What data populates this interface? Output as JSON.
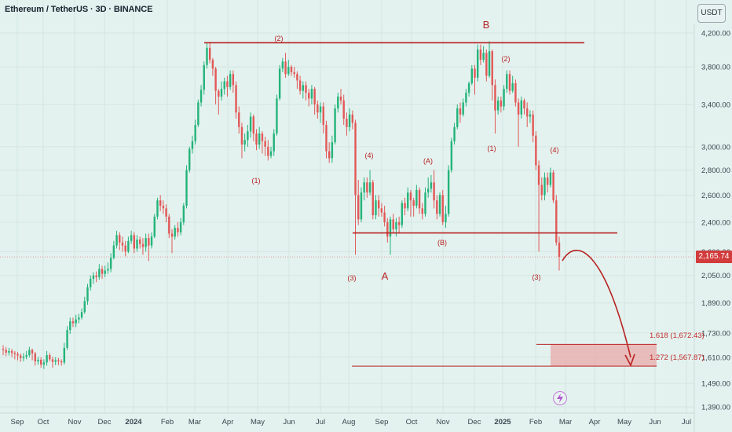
{
  "header": {
    "title": "Ethereum / TetherUS · 3D · BINANCE",
    "unit_label": "USDT"
  },
  "price_badge": "2,165.74",
  "colors": {
    "background": "#e3f2ef",
    "up": "#24b37a",
    "down": "#e15857",
    "annotation": "#b82222",
    "fib_zone": "#e9a5a5"
  },
  "chart_data": {
    "type": "candlestick",
    "title": "Ethereum / TetherUS · 3D · BINANCE",
    "y_scale": "log",
    "ylim": [
      1360,
      4400
    ],
    "y_ticks": [
      "4,200.00",
      "3,800.00",
      "3,400.00",
      "3,000.00",
      "2,800.00",
      "2,600.00",
      "2,400.00",
      "2,200.00",
      "2,050.00",
      "1,890.00",
      "1,730.00",
      "1,610.00",
      "1,490.00",
      "1,390.00"
    ],
    "x_ticks": [
      "Sep",
      "Oct",
      "Nov",
      "Dec",
      "2024",
      "Feb",
      "Mar",
      "Apr",
      "May",
      "Jun",
      "Jul",
      "Aug",
      "Sep",
      "Oct",
      "Nov",
      "Dec",
      "2025",
      "Feb",
      "Mar",
      "Apr",
      "May",
      "Jun",
      "Jul"
    ],
    "candles": [
      [
        1650,
        1645,
        1668,
        1620
      ],
      [
        1645,
        1632,
        1660,
        1615
      ],
      [
        1632,
        1640,
        1655,
        1618
      ],
      [
        1640,
        1630,
        1650,
        1610
      ],
      [
        1630,
        1625,
        1640,
        1600
      ],
      [
        1625,
        1618,
        1635,
        1595
      ],
      [
        1618,
        1606,
        1628,
        1588
      ],
      [
        1606,
        1612,
        1630,
        1590
      ],
      [
        1612,
        1620,
        1640,
        1600
      ],
      [
        1620,
        1645,
        1660,
        1610
      ],
      [
        1645,
        1628,
        1652,
        1595
      ],
      [
        1628,
        1590,
        1635,
        1570
      ],
      [
        1590,
        1598,
        1612,
        1575
      ],
      [
        1598,
        1575,
        1610,
        1560
      ],
      [
        1575,
        1585,
        1600,
        1555
      ],
      [
        1585,
        1620,
        1640,
        1570
      ],
      [
        1620,
        1600,
        1630,
        1590
      ],
      [
        1600,
        1588,
        1612,
        1560
      ],
      [
        1588,
        1596,
        1610,
        1572
      ],
      [
        1596,
        1590,
        1606,
        1572
      ],
      [
        1590,
        1585,
        1600,
        1570
      ],
      [
        1585,
        1655,
        1680,
        1575
      ],
      [
        1655,
        1745,
        1765,
        1645
      ],
      [
        1745,
        1790,
        1810,
        1725
      ],
      [
        1790,
        1780,
        1810,
        1760
      ],
      [
        1780,
        1800,
        1825,
        1760
      ],
      [
        1800,
        1810,
        1830,
        1780
      ],
      [
        1810,
        1840,
        1860,
        1800
      ],
      [
        1840,
        1900,
        1925,
        1830
      ],
      [
        1900,
        1980,
        2000,
        1880
      ],
      [
        1980,
        2030,
        2050,
        1960
      ],
      [
        2030,
        2050,
        2070,
        2000
      ],
      [
        2050,
        2040,
        2075,
        2010
      ],
      [
        2040,
        2090,
        2120,
        2025
      ],
      [
        2090,
        2060,
        2110,
        2030
      ],
      [
        2060,
        2080,
        2110,
        2040
      ],
      [
        2080,
        2090,
        2130,
        2060
      ],
      [
        2090,
        2160,
        2190,
        2070
      ],
      [
        2160,
        2240,
        2270,
        2150
      ],
      [
        2240,
        2310,
        2340,
        2220
      ],
      [
        2310,
        2260,
        2330,
        2210
      ],
      [
        2260,
        2240,
        2300,
        2200
      ],
      [
        2240,
        2200,
        2270,
        2170
      ],
      [
        2200,
        2270,
        2300,
        2190
      ],
      [
        2270,
        2310,
        2340,
        2250
      ],
      [
        2310,
        2220,
        2330,
        2190
      ],
      [
        2220,
        2280,
        2310,
        2200
      ],
      [
        2280,
        2250,
        2300,
        2220
      ],
      [
        2250,
        2230,
        2290,
        2180
      ],
      [
        2230,
        2290,
        2320,
        2200
      ],
      [
        2290,
        2240,
        2320,
        2140
      ],
      [
        2240,
        2300,
        2330,
        2220
      ],
      [
        2300,
        2440,
        2460,
        2290
      ],
      [
        2440,
        2560,
        2580,
        2420
      ],
      [
        2560,
        2520,
        2600,
        2480
      ],
      [
        2520,
        2500,
        2560,
        2460
      ],
      [
        2500,
        2440,
        2530,
        2400
      ],
      [
        2440,
        2320,
        2460,
        2290
      ],
      [
        2320,
        2300,
        2350,
        2190
      ],
      [
        2300,
        2360,
        2380,
        2280
      ],
      [
        2360,
        2330,
        2400,
        2300
      ],
      [
        2330,
        2400,
        2430,
        2310
      ],
      [
        2400,
        2520,
        2540,
        2380
      ],
      [
        2520,
        2800,
        2840,
        2500
      ],
      [
        2800,
        2980,
        3000,
        2780
      ],
      [
        2980,
        3050,
        3100,
        2940
      ],
      [
        3050,
        3200,
        3250,
        3020
      ],
      [
        3200,
        3420,
        3450,
        3180
      ],
      [
        3420,
        3550,
        3600,
        3380
      ],
      [
        3550,
        3820,
        3860,
        3500
      ],
      [
        3820,
        4020,
        4080,
        3780
      ],
      [
        4020,
        3880,
        4090,
        3840
      ],
      [
        3880,
        3780,
        3900,
        3700
      ],
      [
        3780,
        3540,
        3800,
        3400
      ],
      [
        3540,
        3480,
        3560,
        3300
      ],
      [
        3480,
        3560,
        3640,
        3440
      ],
      [
        3560,
        3640,
        3680,
        3500
      ],
      [
        3640,
        3580,
        3700,
        3480
      ],
      [
        3580,
        3720,
        3760,
        3550
      ],
      [
        3720,
        3600,
        3760,
        3520
      ],
      [
        3600,
        3320,
        3640,
        3260
      ],
      [
        3320,
        3180,
        3380,
        3120
      ],
      [
        3180,
        3020,
        3220,
        2900
      ],
      [
        3020,
        3060,
        3120,
        2960
      ],
      [
        3060,
        3140,
        3200,
        3000
      ],
      [
        3140,
        3280,
        3320,
        3080
      ],
      [
        3280,
        3120,
        3300,
        3050
      ],
      [
        3120,
        3020,
        3160,
        2970
      ],
      [
        3020,
        3120,
        3180,
        2980
      ],
      [
        3120,
        3050,
        3140,
        2940
      ],
      [
        3050,
        3000,
        3090,
        2920
      ],
      [
        3000,
        2920,
        3060,
        2880
      ],
      [
        2920,
        2960,
        3000,
        2900
      ],
      [
        2960,
        3120,
        3160,
        2920
      ],
      [
        3120,
        3460,
        3500,
        3100
      ],
      [
        3460,
        3780,
        3820,
        3440
      ],
      [
        3780,
        3860,
        3900,
        3740
      ],
      [
        3860,
        3720,
        3960,
        3680
      ],
      [
        3720,
        3800,
        3880,
        3700
      ],
      [
        3800,
        3740,
        3820,
        3700
      ],
      [
        3740,
        3720,
        3800,
        3680
      ],
      [
        3720,
        3650,
        3750,
        3560
      ],
      [
        3650,
        3540,
        3700,
        3500
      ],
      [
        3540,
        3600,
        3640,
        3460
      ],
      [
        3600,
        3520,
        3640,
        3440
      ],
      [
        3520,
        3460,
        3560,
        3380
      ],
      [
        3460,
        3560,
        3600,
        3400
      ],
      [
        3560,
        3400,
        3580,
        3300
      ],
      [
        3400,
        3320,
        3440,
        3260
      ],
      [
        3320,
        3380,
        3420,
        3220
      ],
      [
        3380,
        3200,
        3420,
        3120
      ],
      [
        3200,
        2960,
        3240,
        2900
      ],
      [
        2960,
        2900,
        3040,
        2860
      ],
      [
        2900,
        3040,
        3100,
        2860
      ],
      [
        3040,
        3360,
        3400,
        3020
      ],
      [
        3360,
        3480,
        3520,
        3320
      ],
      [
        3480,
        3440,
        3560,
        3400
      ],
      [
        3440,
        3260,
        3500,
        3200
      ],
      [
        3260,
        3180,
        3320,
        3100
      ],
      [
        3180,
        3300,
        3360,
        3140
      ],
      [
        3300,
        3220,
        3340,
        3160
      ],
      [
        3220,
        2600,
        3250,
        2180
      ],
      [
        2600,
        2420,
        2720,
        2380
      ],
      [
        2420,
        2620,
        2660,
        2400
      ],
      [
        2620,
        2700,
        2740,
        2560
      ],
      [
        2700,
        2620,
        2740,
        2580
      ],
      [
        2620,
        2700,
        2800,
        2600
      ],
      [
        2700,
        2450,
        2720,
        2420
      ],
      [
        2450,
        2560,
        2600,
        2420
      ],
      [
        2560,
        2500,
        2600,
        2440
      ],
      [
        2500,
        2470,
        2540,
        2440
      ],
      [
        2470,
        2400,
        2520,
        2370
      ],
      [
        2400,
        2300,
        2430,
        2260
      ],
      [
        2300,
        2420,
        2440,
        2180
      ],
      [
        2420,
        2350,
        2460,
        2320
      ],
      [
        2350,
        2400,
        2430,
        2300
      ],
      [
        2400,
        2380,
        2440,
        2320
      ],
      [
        2380,
        2540,
        2560,
        2360
      ],
      [
        2540,
        2500,
        2580,
        2450
      ],
      [
        2500,
        2620,
        2660,
        2480
      ],
      [
        2620,
        2560,
        2640,
        2440
      ],
      [
        2560,
        2520,
        2580,
        2440
      ],
      [
        2520,
        2640,
        2680,
        2500
      ],
      [
        2640,
        2500,
        2660,
        2460
      ],
      [
        2500,
        2460,
        2540,
        2420
      ],
      [
        2460,
        2620,
        2660,
        2440
      ],
      [
        2620,
        2650,
        2740,
        2580
      ],
      [
        2650,
        2700,
        2760,
        2620
      ],
      [
        2700,
        2560,
        2800,
        2500
      ],
      [
        2560,
        2460,
        2600,
        2420
      ],
      [
        2460,
        2600,
        2620,
        2440
      ],
      [
        2600,
        2400,
        2640,
        2380
      ],
      [
        2400,
        2460,
        2520,
        2360
      ],
      [
        2460,
        2800,
        2840,
        2440
      ],
      [
        2800,
        3050,
        3080,
        2780
      ],
      [
        3050,
        3180,
        3220,
        3020
      ],
      [
        3180,
        3360,
        3400,
        3160
      ],
      [
        3360,
        3300,
        3420,
        3220
      ],
      [
        3300,
        3420,
        3460,
        3280
      ],
      [
        3420,
        3520,
        3560,
        3380
      ],
      [
        3520,
        3620,
        3640,
        3480
      ],
      [
        3620,
        3780,
        3820,
        3600
      ],
      [
        3780,
        3680,
        3820,
        3500
      ],
      [
        3680,
        4000,
        4060,
        3640
      ],
      [
        4000,
        3880,
        4060,
        3820
      ],
      [
        3880,
        3960,
        4040,
        3850
      ],
      [
        3960,
        3700,
        4000,
        3640
      ],
      [
        3700,
        3980,
        4100,
        3680
      ],
      [
        3980,
        3600,
        4000,
        3440
      ],
      [
        3600,
        3340,
        3660,
        3120
      ],
      [
        3340,
        3440,
        3480,
        3300
      ],
      [
        3440,
        3380,
        3480,
        3320
      ],
      [
        3380,
        3560,
        3600,
        3340
      ],
      [
        3560,
        3720,
        3760,
        3520
      ],
      [
        3720,
        3540,
        3760,
        3500
      ],
      [
        3540,
        3620,
        3700,
        3520
      ],
      [
        3620,
        3420,
        3660,
        3380
      ],
      [
        3420,
        3300,
        3460,
        3000
      ],
      [
        3300,
        3440,
        3480,
        3260
      ],
      [
        3440,
        3360,
        3460,
        3300
      ],
      [
        3360,
        3280,
        3420,
        3180
      ],
      [
        3280,
        3300,
        3340,
        3220
      ],
      [
        3300,
        3100,
        3340,
        3040
      ],
      [
        3100,
        2840,
        3140,
        2800
      ],
      [
        2840,
        2680,
        2880,
        2200
      ],
      [
        2680,
        2600,
        2740,
        2560
      ],
      [
        2600,
        2740,
        2780,
        2560
      ],
      [
        2740,
        2680,
        2780,
        2620
      ],
      [
        2680,
        2780,
        2820,
        2660
      ],
      [
        2780,
        2560,
        2800,
        2540
      ],
      [
        2560,
        2260,
        2600,
        2240
      ],
      [
        2260,
        2166,
        2300,
        2080
      ]
    ],
    "annotations": {
      "wave_labels": [
        "(2)",
        "(1)",
        "(3)",
        "A",
        "(4)",
        "(A)",
        "(B)",
        "B",
        "(2)",
        "(1)",
        "(4)",
        "(3)"
      ],
      "fib_levels": [
        {
          "label": "1.618 (1,672.43)",
          "value": 1672.43
        },
        {
          "label": "1.272 (1,567.87)",
          "value": 1567.87
        }
      ],
      "resistance": 4080,
      "support": 2325,
      "last_price": 2165.74
    }
  }
}
